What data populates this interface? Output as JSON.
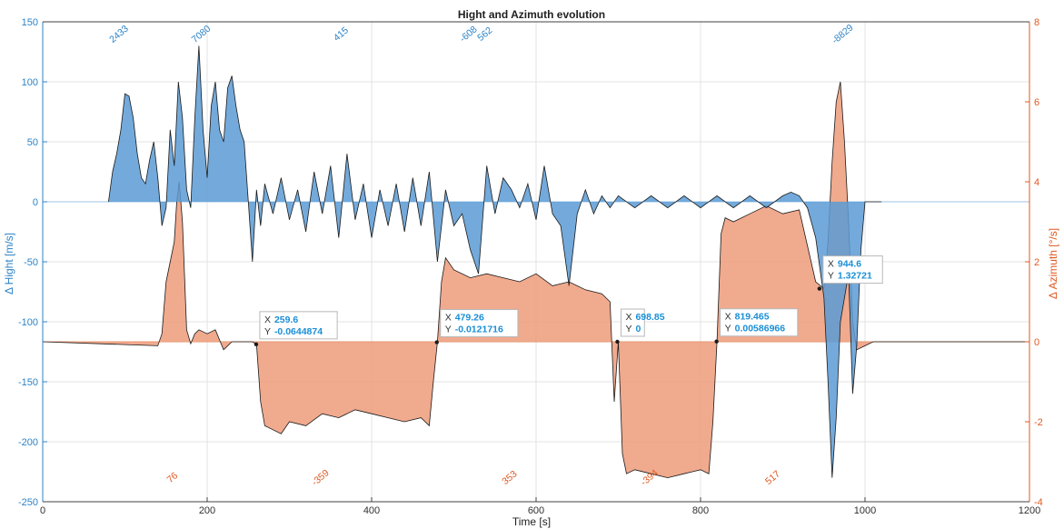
{
  "chart_data": {
    "type": "area",
    "title": "Hight and Azimuth evolution",
    "xlabel": "Time [s]",
    "ylabel_left": "Δ Hight [m/s]",
    "ylabel_right": "Δ Azimuth [°/s]",
    "xlim": [
      0,
      1200
    ],
    "ylim_left": [
      -250,
      150
    ],
    "ylim_right": [
      -4,
      8
    ],
    "x_ticks": [
      0,
      200,
      400,
      600,
      800,
      1000,
      1200
    ],
    "y_ticks_left": [
      -250,
      -200,
      -150,
      -100,
      -50,
      0,
      50,
      100,
      150
    ],
    "y_ticks_right": [
      -4,
      -2,
      0,
      2,
      4,
      6,
      8
    ],
    "grid": true,
    "colors": {
      "hight": "#5b9bd5",
      "azimuth": "#ed9b7a",
      "hight_axis": "#2c83c7",
      "azimuth_axis": "#e05a22"
    },
    "series": [
      {
        "axis": "left",
        "x": [
          80,
          85,
          90,
          95,
          100,
          105,
          110,
          115,
          120,
          125,
          130,
          135,
          140,
          145,
          150,
          155,
          160,
          165,
          170,
          175,
          180,
          185,
          190,
          195,
          200,
          205,
          210,
          215,
          220,
          225,
          230,
          235,
          240,
          245,
          250,
          255,
          260,
          265,
          270,
          280,
          290,
          300,
          310,
          320,
          330,
          340,
          350,
          360,
          370,
          380,
          390,
          400,
          410,
          420,
          430,
          440,
          450,
          460,
          470,
          480,
          490,
          500,
          510,
          520,
          530,
          540,
          550,
          560,
          570,
          580,
          590,
          600,
          610,
          620,
          630,
          640,
          650,
          660,
          670,
          680,
          690,
          700,
          720,
          740,
          760,
          780,
          800,
          820,
          840,
          860,
          880,
          900,
          910,
          920,
          930,
          940,
          950,
          955,
          960,
          965,
          970,
          975,
          980,
          985,
          990,
          995,
          1000,
          1010,
          1020
        ],
        "y": [
          0,
          25,
          40,
          60,
          90,
          88,
          70,
          40,
          20,
          15,
          35,
          50,
          20,
          -20,
          -5,
          60,
          30,
          100,
          70,
          10,
          -5,
          70,
          130,
          60,
          20,
          80,
          100,
          60,
          50,
          95,
          105,
          80,
          60,
          50,
          0,
          -50,
          10,
          -20,
          15,
          -10,
          20,
          -15,
          10,
          -25,
          25,
          -10,
          30,
          -30,
          40,
          -15,
          15,
          -30,
          10,
          -20,
          15,
          -25,
          20,
          -20,
          25,
          -50,
          10,
          -20,
          -10,
          -40,
          -60,
          30,
          -10,
          20,
          10,
          -5,
          15,
          -15,
          30,
          -10,
          -20,
          -70,
          -10,
          10,
          -10,
          5,
          -5,
          5,
          -5,
          5,
          -5,
          5,
          -5,
          5,
          -5,
          5,
          -5,
          5,
          8,
          5,
          -5,
          -30,
          -80,
          -150,
          -230,
          -180,
          -100,
          -80,
          -60,
          -160,
          -120,
          -40,
          0,
          0,
          0
        ]
      },
      {
        "axis": "right",
        "x": [
          0,
          140,
          145,
          150,
          155,
          160,
          163,
          166,
          170,
          175,
          180,
          185,
          190,
          200,
          210,
          220,
          230,
          240,
          250,
          255,
          260,
          265,
          270,
          280,
          290,
          300,
          320,
          340,
          360,
          380,
          400,
          420,
          440,
          460,
          470,
          475,
          480,
          485,
          490,
          500,
          520,
          540,
          560,
          580,
          600,
          620,
          640,
          660,
          680,
          690,
          695,
          700,
          705,
          710,
          720,
          740,
          760,
          780,
          800,
          810,
          815,
          820,
          825,
          830,
          840,
          860,
          880,
          900,
          920,
          940,
          950,
          955,
          960,
          965,
          970,
          975,
          980,
          985,
          990,
          1000,
          1010,
          1020,
          1200
        ],
        "y": [
          0,
          -0.1,
          0.2,
          1.5,
          2.0,
          2.5,
          3.5,
          4.0,
          3.0,
          0.3,
          -0.05,
          0.2,
          0.3,
          0.2,
          0.3,
          -0.2,
          0,
          0,
          0,
          0,
          -0.06,
          -1.5,
          -2.1,
          -2.2,
          -2.3,
          -2.0,
          -2.1,
          -1.8,
          -1.9,
          -1.7,
          -1.8,
          -1.9,
          -2.0,
          -1.9,
          -2.1,
          -1.0,
          -0.01,
          1.5,
          2.1,
          1.8,
          1.6,
          1.7,
          1.6,
          1.5,
          1.7,
          1.4,
          1.5,
          1.3,
          1.2,
          1.0,
          -1.5,
          0,
          -2.8,
          -3.3,
          -3.2,
          -3.3,
          -3.4,
          -3.3,
          -3.2,
          -3.3,
          -2.0,
          0.006,
          2.7,
          3.1,
          3.0,
          3.2,
          3.4,
          3.2,
          3.3,
          1.5,
          1.33,
          2.5,
          4.5,
          6.0,
          6.5,
          5.0,
          3.0,
          0.5,
          -0.2,
          -0.1,
          0,
          0,
          0
        ]
      }
    ],
    "annotations_top": [
      {
        "x": 95,
        "text": "2433"
      },
      {
        "x": 195,
        "text": "7080"
      },
      {
        "x": 365,
        "text": "415"
      },
      {
        "x": 520,
        "text": "-608"
      },
      {
        "x": 540,
        "text": "562"
      },
      {
        "x": 975,
        "text": "-8829"
      }
    ],
    "annotations_bottom": [
      {
        "x": 160,
        "text": "76"
      },
      {
        "x": 340,
        "text": "-359"
      },
      {
        "x": 570,
        "text": "353"
      },
      {
        "x": 740,
        "text": "-394"
      },
      {
        "x": 890,
        "text": "517"
      }
    ],
    "datatips": [
      {
        "x_value": 259.6,
        "x_label": "X",
        "x_text": "259.6",
        "y_label": "Y",
        "y_text": "-0.0644874"
      },
      {
        "x_value": 479.26,
        "x_label": "X",
        "x_text": "479.26",
        "y_label": "Y",
        "y_text": "-0.0121716"
      },
      {
        "x_value": 698.85,
        "x_label": "X",
        "x_text": "698.85",
        "y_label": "Y",
        "y_text": "0"
      },
      {
        "x_value": 819.465,
        "x_label": "X",
        "x_text": "819.465",
        "y_label": "Y",
        "y_text": "0.00586966"
      },
      {
        "x_value": 944.6,
        "x_label": "X",
        "x_text": "944.6",
        "y_label": "Y",
        "y_text": "1.32721"
      }
    ]
  }
}
